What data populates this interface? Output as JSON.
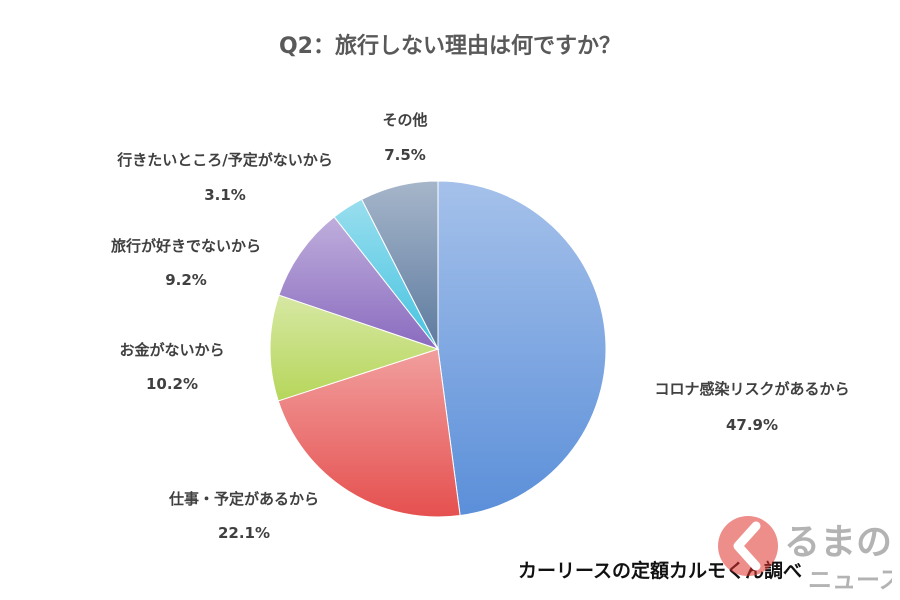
{
  "chart_data": {
    "type": "pie",
    "title": "Q2：旅行しない理由は何ですか？",
    "slices": [
      {
        "label": "コロナ感染リスクがあるから",
        "value": 47.9,
        "value_label": "47.9%",
        "color": "#5b8fd9"
      },
      {
        "label": "仕事・予定があるから",
        "value": 22.1,
        "value_label": "22.1%",
        "color": "#e5504f"
      },
      {
        "label": "お金がないから",
        "value": 10.2,
        "value_label": "10.2%",
        "color": "#b6d65a"
      },
      {
        "label": "旅行が好きでないから",
        "value": 9.2,
        "value_label": "9.2%",
        "color": "#8a6bbf"
      },
      {
        "label": "行きたいところ/予定がないから",
        "value": 3.1,
        "value_label": "3.1%",
        "color": "#45c3e0"
      },
      {
        "label": "その他",
        "value": 7.5,
        "value_label": "7.5%",
        "color": "#5d7a9f"
      }
    ],
    "start_angle": "12 o'clock",
    "direction": "clockwise",
    "legend": "none"
  },
  "footer": {
    "source": "カーリースの定額カルモくん調べ"
  },
  "logo": {
    "text_top": "るまの",
    "text_bottom": "ニュース",
    "accent": "#e0312b"
  }
}
